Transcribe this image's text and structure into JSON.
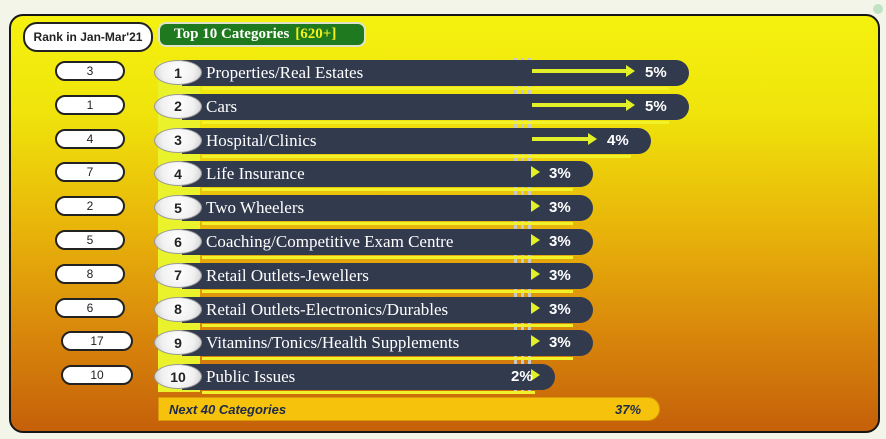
{
  "header": {
    "rank_label": "Rank in Jan-Mar'21",
    "title": "Top 10 Categories",
    "title_count": "[620+]"
  },
  "chart_data": {
    "type": "bar",
    "title": "Top 10 Categories [620+]",
    "categories": [
      "Properties/Real Estates",
      "Cars",
      "Hospital/Clinics",
      "Life Insurance",
      "Two Wheelers",
      "Coaching/Competitive Exam Centre",
      "Retail Outlets-Jewellers",
      "Retail Outlets-Electronics/Durables",
      "Vitamins/Tonics/Health Supplements",
      "Public Issues"
    ],
    "positions": [
      "1",
      "2",
      "3",
      "4",
      "5",
      "6",
      "7",
      "8",
      "9",
      "10"
    ],
    "values": [
      5,
      5,
      4,
      3,
      3,
      3,
      3,
      3,
      3,
      2
    ],
    "value_labels": [
      "5%",
      "5%",
      "4%",
      "3%",
      "3%",
      "3%",
      "3%",
      "3%",
      "3%",
      "2%"
    ],
    "prev_ranks": [
      "3",
      "1",
      "4",
      "7",
      "2",
      "5",
      "8",
      "6",
      "17",
      "10"
    ],
    "bar_color": "#323a4e",
    "arrow_color": "#e2f02a",
    "footer": {
      "label": "Next 40 Categories",
      "value": "37%"
    }
  }
}
